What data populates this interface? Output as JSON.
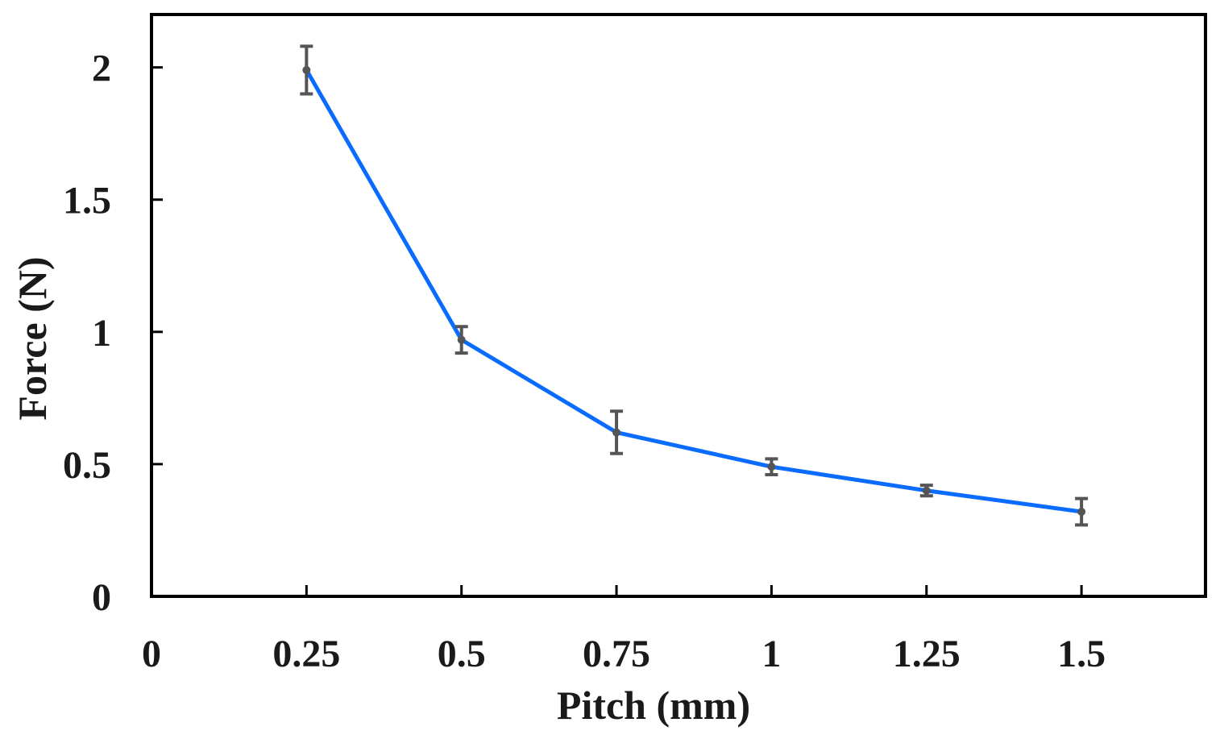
{
  "chart_data": {
    "type": "line",
    "title": "",
    "xlabel": "Pitch (mm)",
    "ylabel": "Force (N)",
    "xlim": [
      0,
      1.7
    ],
    "ylim": [
      0,
      2.2
    ],
    "xticks": [
      0,
      0.25,
      0.5,
      0.75,
      1,
      1.25,
      1.5
    ],
    "xtick_labels": [
      "0",
      "0.25",
      "0.5",
      "0.75",
      "1",
      "1.25",
      "1.5"
    ],
    "yticks": [
      0,
      0.5,
      1,
      1.5,
      2
    ],
    "ytick_labels": [
      "0",
      "0.5",
      "1",
      "1.5",
      "2"
    ],
    "grid": false,
    "legend": "none",
    "series": [
      {
        "name": "Force",
        "color": "#0a6cff",
        "marker_color": "#555555",
        "x": [
          0.25,
          0.5,
          0.75,
          1,
          1.25,
          1.5
        ],
        "y": [
          1.99,
          0.97,
          0.62,
          0.49,
          0.4,
          0.32
        ],
        "error": [
          0.09,
          0.05,
          0.08,
          0.03,
          0.02,
          0.05
        ]
      }
    ]
  }
}
